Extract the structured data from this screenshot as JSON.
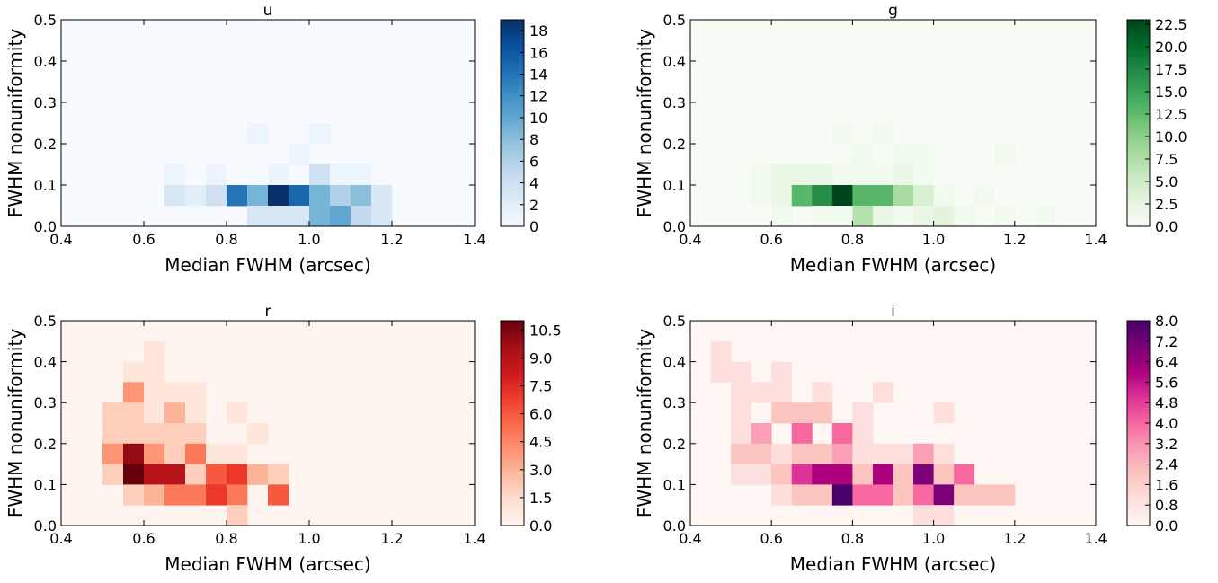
{
  "chart_data": [
    {
      "type": "heatmap",
      "title": "u",
      "xlabel": "Median FWHM (arcsec)",
      "ylabel": "FWHM nonuniformity",
      "xlim": [
        0.4,
        1.4
      ],
      "ylim": [
        0.0,
        0.5
      ],
      "xticks": [
        "0.4",
        "0.6",
        "0.8",
        "1.0",
        "1.2",
        "1.4"
      ],
      "yticks": [
        "0.0",
        "0.1",
        "0.2",
        "0.3",
        "0.4",
        "0.5"
      ],
      "bin_width_x": 0.05,
      "bin_width_y": 0.05,
      "colormap": "Blues",
      "colors": [
        "#f7fbff",
        "#deebf7",
        "#c6dbef",
        "#9ecae1",
        "#6baed6",
        "#4292c6",
        "#2171b5",
        "#08519c",
        "#08306b"
      ],
      "vmin": 0,
      "vmax": 19,
      "colorbar_ticks": [
        "0",
        "2",
        "4",
        "6",
        "8",
        "10",
        "12",
        "14",
        "16",
        "18"
      ],
      "cells": [
        {
          "x": 0.85,
          "y": 0.2,
          "v": 1
        },
        {
          "x": 1.0,
          "y": 0.2,
          "v": 1
        },
        {
          "x": 0.95,
          "y": 0.15,
          "v": 1
        },
        {
          "x": 0.65,
          "y": 0.1,
          "v": 1
        },
        {
          "x": 0.75,
          "y": 0.1,
          "v": 1
        },
        {
          "x": 0.9,
          "y": 0.1,
          "v": 1
        },
        {
          "x": 1.0,
          "y": 0.1,
          "v": 4
        },
        {
          "x": 1.05,
          "y": 0.1,
          "v": 1
        },
        {
          "x": 1.1,
          "y": 0.1,
          "v": 1
        },
        {
          "x": 0.65,
          "y": 0.05,
          "v": 3
        },
        {
          "x": 0.7,
          "y": 0.05,
          "v": 2
        },
        {
          "x": 0.75,
          "y": 0.05,
          "v": 4
        },
        {
          "x": 0.8,
          "y": 0.05,
          "v": 14
        },
        {
          "x": 0.85,
          "y": 0.05,
          "v": 9
        },
        {
          "x": 0.9,
          "y": 0.05,
          "v": 19
        },
        {
          "x": 0.95,
          "y": 0.05,
          "v": 15
        },
        {
          "x": 1.0,
          "y": 0.05,
          "v": 9
        },
        {
          "x": 1.05,
          "y": 0.05,
          "v": 6
        },
        {
          "x": 1.1,
          "y": 0.05,
          "v": 8
        },
        {
          "x": 1.15,
          "y": 0.05,
          "v": 3
        },
        {
          "x": 0.85,
          "y": 0.0,
          "v": 3
        },
        {
          "x": 0.9,
          "y": 0.0,
          "v": 3
        },
        {
          "x": 0.95,
          "y": 0.0,
          "v": 3
        },
        {
          "x": 1.0,
          "y": 0.0,
          "v": 9
        },
        {
          "x": 1.05,
          "y": 0.0,
          "v": 10
        },
        {
          "x": 1.1,
          "y": 0.0,
          "v": 5
        },
        {
          "x": 1.15,
          "y": 0.0,
          "v": 3
        }
      ]
    },
    {
      "type": "heatmap",
      "title": "g",
      "xlabel": "Median FWHM (arcsec)",
      "ylabel": "FWHM nonuniformity",
      "xlim": [
        0.4,
        1.4
      ],
      "ylim": [
        0.0,
        0.5
      ],
      "xticks": [
        "0.4",
        "0.6",
        "0.8",
        "1.0",
        "1.2",
        "1.4"
      ],
      "yticks": [
        "0.0",
        "0.1",
        "0.2",
        "0.3",
        "0.4",
        "0.5"
      ],
      "bin_width_x": 0.05,
      "bin_width_y": 0.05,
      "colormap": "Greens",
      "colors": [
        "#f7fcf5",
        "#e5f5e0",
        "#c7e9c0",
        "#a1d99b",
        "#74c476",
        "#41ab5d",
        "#238b45",
        "#006d2c",
        "#00441b"
      ],
      "vmin": 0,
      "vmax": 23,
      "colorbar_ticks": [
        "0.0",
        "2.5",
        "5.0",
        "7.5",
        "10.0",
        "12.5",
        "15.0",
        "17.5",
        "20.0",
        "22.5"
      ],
      "cells": [
        {
          "x": 0.75,
          "y": 0.2,
          "v": 1
        },
        {
          "x": 0.85,
          "y": 0.2,
          "v": 1
        },
        {
          "x": 0.8,
          "y": 0.15,
          "v": 1
        },
        {
          "x": 0.9,
          "y": 0.15,
          "v": 1
        },
        {
          "x": 0.95,
          "y": 0.15,
          "v": 1
        },
        {
          "x": 1.15,
          "y": 0.15,
          "v": 1
        },
        {
          "x": 0.55,
          "y": 0.1,
          "v": 1
        },
        {
          "x": 0.6,
          "y": 0.1,
          "v": 2
        },
        {
          "x": 0.65,
          "y": 0.1,
          "v": 2
        },
        {
          "x": 0.7,
          "y": 0.1,
          "v": 2
        },
        {
          "x": 0.75,
          "y": 0.1,
          "v": 1
        },
        {
          "x": 0.8,
          "y": 0.1,
          "v": 1
        },
        {
          "x": 0.85,
          "y": 0.1,
          "v": 1
        },
        {
          "x": 0.9,
          "y": 0.1,
          "v": 2
        },
        {
          "x": 0.95,
          "y": 0.1,
          "v": 1
        },
        {
          "x": 0.55,
          "y": 0.05,
          "v": 1
        },
        {
          "x": 0.6,
          "y": 0.05,
          "v": 2
        },
        {
          "x": 0.65,
          "y": 0.05,
          "v": 13
        },
        {
          "x": 0.7,
          "y": 0.05,
          "v": 17
        },
        {
          "x": 0.75,
          "y": 0.05,
          "v": 23
        },
        {
          "x": 0.8,
          "y": 0.05,
          "v": 13
        },
        {
          "x": 0.85,
          "y": 0.05,
          "v": 13
        },
        {
          "x": 0.9,
          "y": 0.05,
          "v": 8
        },
        {
          "x": 0.95,
          "y": 0.05,
          "v": 4
        },
        {
          "x": 1.0,
          "y": 0.05,
          "v": 1
        },
        {
          "x": 1.1,
          "y": 0.05,
          "v": 1
        },
        {
          "x": 0.6,
          "y": 0.0,
          "v": 1
        },
        {
          "x": 0.7,
          "y": 0.0,
          "v": 1
        },
        {
          "x": 0.75,
          "y": 0.0,
          "v": 1
        },
        {
          "x": 0.8,
          "y": 0.0,
          "v": 7
        },
        {
          "x": 0.85,
          "y": 0.0,
          "v": 2
        },
        {
          "x": 0.9,
          "y": 0.0,
          "v": 1
        },
        {
          "x": 0.95,
          "y": 0.0,
          "v": 2
        },
        {
          "x": 1.0,
          "y": 0.0,
          "v": 3
        },
        {
          "x": 1.05,
          "y": 0.0,
          "v": 1
        },
        {
          "x": 1.15,
          "y": 0.0,
          "v": 1
        },
        {
          "x": 1.25,
          "y": 0.0,
          "v": 1
        }
      ]
    },
    {
      "type": "heatmap",
      "title": "r",
      "xlabel": "Median FWHM (arcsec)",
      "ylabel": "FWHM nonuniformity",
      "xlim": [
        0.4,
        1.4
      ],
      "ylim": [
        0.0,
        0.5
      ],
      "xticks": [
        "0.4",
        "0.6",
        "0.8",
        "1.0",
        "1.2",
        "1.4"
      ],
      "yticks": [
        "0.0",
        "0.1",
        "0.2",
        "0.3",
        "0.4",
        "0.5"
      ],
      "bin_width_x": 0.05,
      "bin_width_y": 0.05,
      "colormap": "Reds",
      "colors": [
        "#fff5f0",
        "#fee0d2",
        "#fcbba1",
        "#fc9272",
        "#fb6a4a",
        "#ef3b2c",
        "#cb181d",
        "#a50f15",
        "#67000d"
      ],
      "vmin": 0,
      "vmax": 11,
      "colorbar_ticks": [
        "0.0",
        "1.5",
        "3.0",
        "4.5",
        "6.0",
        "7.5",
        "9.0",
        "10.5"
      ],
      "cells": [
        {
          "x": 0.6,
          "y": 0.4,
          "v": 1
        },
        {
          "x": 0.55,
          "y": 0.35,
          "v": 1
        },
        {
          "x": 0.6,
          "y": 0.35,
          "v": 1
        },
        {
          "x": 0.55,
          "y": 0.3,
          "v": 4
        },
        {
          "x": 0.6,
          "y": 0.3,
          "v": 1
        },
        {
          "x": 0.65,
          "y": 0.3,
          "v": 1
        },
        {
          "x": 0.7,
          "y": 0.3,
          "v": 1
        },
        {
          "x": 0.5,
          "y": 0.25,
          "v": 2
        },
        {
          "x": 0.55,
          "y": 0.25,
          "v": 2
        },
        {
          "x": 0.6,
          "y": 0.25,
          "v": 1
        },
        {
          "x": 0.65,
          "y": 0.25,
          "v": 3
        },
        {
          "x": 0.7,
          "y": 0.25,
          "v": 1
        },
        {
          "x": 0.8,
          "y": 0.25,
          "v": 1
        },
        {
          "x": 0.5,
          "y": 0.2,
          "v": 2
        },
        {
          "x": 0.55,
          "y": 0.2,
          "v": 2
        },
        {
          "x": 0.6,
          "y": 0.2,
          "v": 2
        },
        {
          "x": 0.65,
          "y": 0.2,
          "v": 2
        },
        {
          "x": 0.7,
          "y": 0.2,
          "v": 2
        },
        {
          "x": 0.85,
          "y": 0.2,
          "v": 1
        },
        {
          "x": 0.5,
          "y": 0.15,
          "v": 4
        },
        {
          "x": 0.55,
          "y": 0.15,
          "v": 10
        },
        {
          "x": 0.6,
          "y": 0.15,
          "v": 4
        },
        {
          "x": 0.65,
          "y": 0.15,
          "v": 2
        },
        {
          "x": 0.7,
          "y": 0.15,
          "v": 5
        },
        {
          "x": 0.75,
          "y": 0.15,
          "v": 1
        },
        {
          "x": 0.8,
          "y": 0.15,
          "v": 1
        },
        {
          "x": 0.5,
          "y": 0.1,
          "v": 2
        },
        {
          "x": 0.55,
          "y": 0.1,
          "v": 11
        },
        {
          "x": 0.6,
          "y": 0.1,
          "v": 9
        },
        {
          "x": 0.65,
          "y": 0.1,
          "v": 9
        },
        {
          "x": 0.7,
          "y": 0.1,
          "v": 2
        },
        {
          "x": 0.75,
          "y": 0.1,
          "v": 6
        },
        {
          "x": 0.8,
          "y": 0.1,
          "v": 7
        },
        {
          "x": 0.85,
          "y": 0.1,
          "v": 3
        },
        {
          "x": 0.9,
          "y": 0.1,
          "v": 2
        },
        {
          "x": 0.55,
          "y": 0.05,
          "v": 2
        },
        {
          "x": 0.6,
          "y": 0.05,
          "v": 3
        },
        {
          "x": 0.65,
          "y": 0.05,
          "v": 5
        },
        {
          "x": 0.7,
          "y": 0.05,
          "v": 5
        },
        {
          "x": 0.75,
          "y": 0.05,
          "v": 7
        },
        {
          "x": 0.8,
          "y": 0.05,
          "v": 5
        },
        {
          "x": 0.9,
          "y": 0.05,
          "v": 6
        },
        {
          "x": 0.8,
          "y": 0.0,
          "v": 2
        }
      ]
    },
    {
      "type": "heatmap",
      "title": "i",
      "xlabel": "Median FWHM (arcsec)",
      "ylabel": "FWHM nonuniformity",
      "xlim": [
        0.4,
        1.4
      ],
      "ylim": [
        0.0,
        0.5
      ],
      "xticks": [
        "0.4",
        "0.6",
        "0.8",
        "1.0",
        "1.2",
        "1.4"
      ],
      "yticks": [
        "0.0",
        "0.1",
        "0.2",
        "0.3",
        "0.4",
        "0.5"
      ],
      "bin_width_x": 0.05,
      "bin_width_y": 0.05,
      "colormap": "RdPu",
      "colors": [
        "#fff7f3",
        "#fde0dd",
        "#fcc5c0",
        "#fa9fb5",
        "#f768a1",
        "#dd3497",
        "#ae017e",
        "#7a0177",
        "#49006a"
      ],
      "vmin": 0,
      "vmax": 8,
      "colorbar_ticks": [
        "0.0",
        "0.8",
        "1.6",
        "2.4",
        "3.2",
        "4.0",
        "4.8",
        "5.6",
        "6.4",
        "7.2",
        "8.0"
      ],
      "cells": [
        {
          "x": 0.45,
          "y": 0.4,
          "v": 1
        },
        {
          "x": 0.45,
          "y": 0.35,
          "v": 1
        },
        {
          "x": 0.5,
          "y": 0.35,
          "v": 1
        },
        {
          "x": 0.6,
          "y": 0.35,
          "v": 1
        },
        {
          "x": 0.5,
          "y": 0.3,
          "v": 1
        },
        {
          "x": 0.55,
          "y": 0.3,
          "v": 1
        },
        {
          "x": 0.6,
          "y": 0.3,
          "v": 1
        },
        {
          "x": 0.7,
          "y": 0.3,
          "v": 1
        },
        {
          "x": 0.85,
          "y": 0.3,
          "v": 1
        },
        {
          "x": 0.5,
          "y": 0.25,
          "v": 1
        },
        {
          "x": 0.6,
          "y": 0.25,
          "v": 2
        },
        {
          "x": 0.65,
          "y": 0.25,
          "v": 2
        },
        {
          "x": 0.7,
          "y": 0.25,
          "v": 2
        },
        {
          "x": 0.8,
          "y": 0.25,
          "v": 1
        },
        {
          "x": 1.0,
          "y": 0.25,
          "v": 1
        },
        {
          "x": 0.5,
          "y": 0.2,
          "v": 1
        },
        {
          "x": 0.55,
          "y": 0.2,
          "v": 3
        },
        {
          "x": 0.65,
          "y": 0.2,
          "v": 4
        },
        {
          "x": 0.75,
          "y": 0.2,
          "v": 4
        },
        {
          "x": 0.8,
          "y": 0.2,
          "v": 1
        },
        {
          "x": 0.5,
          "y": 0.15,
          "v": 2
        },
        {
          "x": 0.55,
          "y": 0.15,
          "v": 2
        },
        {
          "x": 0.6,
          "y": 0.15,
          "v": 1
        },
        {
          "x": 0.65,
          "y": 0.15,
          "v": 2
        },
        {
          "x": 0.7,
          "y": 0.15,
          "v": 2
        },
        {
          "x": 0.75,
          "y": 0.15,
          "v": 3
        },
        {
          "x": 0.8,
          "y": 0.15,
          "v": 1
        },
        {
          "x": 0.85,
          "y": 0.15,
          "v": 1
        },
        {
          "x": 0.9,
          "y": 0.15,
          "v": 1
        },
        {
          "x": 0.95,
          "y": 0.15,
          "v": 3
        },
        {
          "x": 1.0,
          "y": 0.15,
          "v": 1
        },
        {
          "x": 0.5,
          "y": 0.1,
          "v": 1
        },
        {
          "x": 0.55,
          "y": 0.1,
          "v": 1
        },
        {
          "x": 0.6,
          "y": 0.1,
          "v": 2
        },
        {
          "x": 0.65,
          "y": 0.1,
          "v": 5
        },
        {
          "x": 0.7,
          "y": 0.1,
          "v": 6
        },
        {
          "x": 0.75,
          "y": 0.1,
          "v": 6
        },
        {
          "x": 0.8,
          "y": 0.1,
          "v": 2
        },
        {
          "x": 0.85,
          "y": 0.1,
          "v": 6
        },
        {
          "x": 0.9,
          "y": 0.1,
          "v": 2
        },
        {
          "x": 0.95,
          "y": 0.1,
          "v": 7
        },
        {
          "x": 1.0,
          "y": 0.1,
          "v": 2
        },
        {
          "x": 1.05,
          "y": 0.1,
          "v": 4
        },
        {
          "x": 0.6,
          "y": 0.05,
          "v": 1
        },
        {
          "x": 0.65,
          "y": 0.05,
          "v": 2
        },
        {
          "x": 0.7,
          "y": 0.05,
          "v": 2
        },
        {
          "x": 0.75,
          "y": 0.05,
          "v": 8
        },
        {
          "x": 0.8,
          "y": 0.05,
          "v": 4
        },
        {
          "x": 0.85,
          "y": 0.05,
          "v": 4
        },
        {
          "x": 0.9,
          "y": 0.05,
          "v": 2
        },
        {
          "x": 0.95,
          "y": 0.05,
          "v": 4
        },
        {
          "x": 1.0,
          "y": 0.05,
          "v": 7
        },
        {
          "x": 1.05,
          "y": 0.05,
          "v": 2
        },
        {
          "x": 1.1,
          "y": 0.05,
          "v": 2
        },
        {
          "x": 1.15,
          "y": 0.05,
          "v": 2
        },
        {
          "x": 0.95,
          "y": 0.0,
          "v": 1
        },
        {
          "x": 1.0,
          "y": 0.0,
          "v": 1
        }
      ]
    }
  ]
}
